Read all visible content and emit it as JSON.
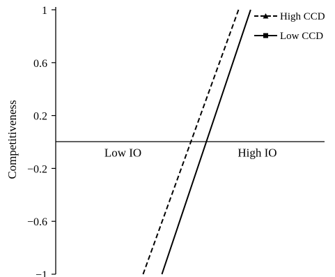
{
  "chart_data": {
    "type": "line",
    "title": "",
    "ylabel": "Competitiveness",
    "xlabel": "",
    "categories": [
      "Low IO",
      "High IO"
    ],
    "yticks": [
      "1",
      "0.6",
      "0.2",
      "−0.2",
      "−0.6",
      "−1"
    ],
    "ylim": [
      -1,
      1
    ],
    "grid": false,
    "legend_position": "top-right",
    "series": [
      {
        "name": "High CCD",
        "style": "dashed",
        "marker": "triangle",
        "color": "#000000",
        "points": [
          {
            "x": 1.15,
            "y": -1.0
          },
          {
            "x": 1.86,
            "y": 1.0
          }
        ]
      },
      {
        "name": "Low CCD",
        "style": "solid",
        "marker": "square",
        "color": "#000000",
        "points": [
          {
            "x": 1.29,
            "y": -1.0
          },
          {
            "x": 1.95,
            "y": 1.0
          }
        ]
      }
    ]
  }
}
